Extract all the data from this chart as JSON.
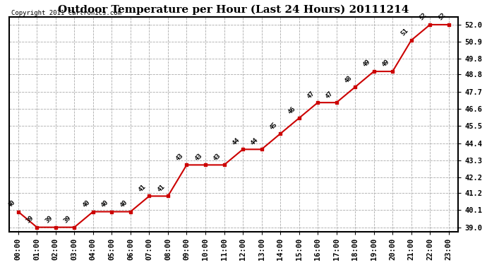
{
  "title": "Outdoor Temperature per Hour (Last 24 Hours) 20111214",
  "copyright": "Copyright 2011 Cartronics.com",
  "hours": [
    "00:00",
    "01:00",
    "02:00",
    "03:00",
    "04:00",
    "05:00",
    "06:00",
    "07:00",
    "08:00",
    "09:00",
    "10:00",
    "11:00",
    "12:00",
    "13:00",
    "14:00",
    "15:00",
    "16:00",
    "17:00",
    "18:00",
    "19:00",
    "20:00",
    "21:00",
    "22:00",
    "23:00"
  ],
  "temps": [
    40,
    39,
    39,
    39,
    40,
    40,
    40,
    41,
    41,
    43,
    43,
    43,
    44,
    44,
    45,
    46,
    47,
    47,
    48,
    49,
    49,
    51,
    52,
    52
  ],
  "ylim": [
    38.72,
    52.5
  ],
  "yticks": [
    39.0,
    40.1,
    41.2,
    42.2,
    43.3,
    44.4,
    45.5,
    46.6,
    47.7,
    48.8,
    49.8,
    50.9,
    52.0
  ],
  "line_color": "#cc0000",
  "marker": "s",
  "marker_size": 3,
  "bg_color": "#ffffff",
  "grid_color": "#aaaaaa",
  "title_fontsize": 11,
  "copyright_fontsize": 6.5,
  "label_fontsize": 6.5,
  "tick_fontsize": 7.5
}
